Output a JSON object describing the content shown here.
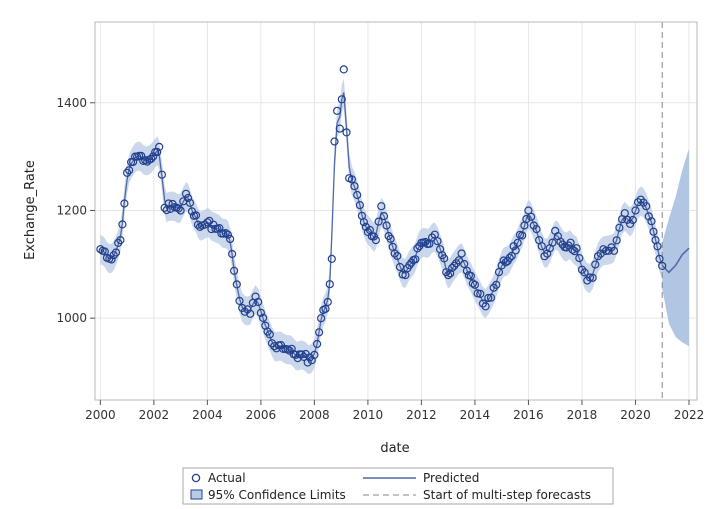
{
  "chart_data": {
    "type": "line",
    "xlabel": "date",
    "ylabel": "Exchange_Rate",
    "xlim": [
      1999.8,
      2022.3
    ],
    "ylim": [
      848,
      1550
    ],
    "x_ticks": [
      2000,
      2002,
      2004,
      2006,
      2008,
      2010,
      2012,
      2014,
      2016,
      2018,
      2020,
      2022
    ],
    "y_ticks": [
      1000,
      1200,
      1400
    ],
    "grid": true,
    "forecast_start": 2021.0,
    "series": [
      {
        "name": "Actual",
        "marker": "open-circle",
        "anchors": [
          [
            2000.0,
            1128
          ],
          [
            2000.25,
            1112
          ],
          [
            2000.5,
            1117
          ],
          [
            2000.75,
            1145
          ],
          [
            2000.9,
            1213
          ],
          [
            2001.0,
            1270
          ],
          [
            2001.3,
            1300
          ],
          [
            2001.6,
            1292
          ],
          [
            2001.9,
            1296
          ],
          [
            2002.2,
            1318
          ],
          [
            2002.4,
            1205
          ],
          [
            2002.7,
            1212
          ],
          [
            2003.0,
            1200
          ],
          [
            2003.2,
            1231
          ],
          [
            2003.5,
            1190
          ],
          [
            2003.8,
            1172
          ],
          [
            2004.0,
            1178
          ],
          [
            2004.3,
            1166
          ],
          [
            2004.6,
            1157
          ],
          [
            2004.85,
            1147
          ],
          [
            2005.0,
            1088
          ],
          [
            2005.2,
            1032
          ],
          [
            2005.4,
            1012
          ],
          [
            2005.6,
            1008
          ],
          [
            2005.8,
            1040
          ],
          [
            2006.0,
            1010
          ],
          [
            2006.25,
            975
          ],
          [
            2006.5,
            948
          ],
          [
            2006.75,
            950
          ],
          [
            2007.0,
            942
          ],
          [
            2007.3,
            932
          ],
          [
            2007.6,
            928
          ],
          [
            2007.9,
            922
          ],
          [
            2008.1,
            952
          ],
          [
            2008.25,
            1000
          ],
          [
            2008.5,
            1030
          ],
          [
            2008.65,
            1110
          ],
          [
            2008.75,
            1328
          ],
          [
            2008.85,
            1385
          ],
          [
            2008.95,
            1352
          ],
          [
            2009.1,
            1462
          ],
          [
            2009.2,
            1345
          ],
          [
            2009.3,
            1260
          ],
          [
            2009.5,
            1245
          ],
          [
            2009.7,
            1210
          ],
          [
            2010.0,
            1160
          ],
          [
            2010.3,
            1145
          ],
          [
            2010.5,
            1208
          ],
          [
            2010.7,
            1172
          ],
          [
            2011.0,
            1120
          ],
          [
            2011.2,
            1095
          ],
          [
            2011.4,
            1080
          ],
          [
            2011.7,
            1108
          ],
          [
            2012.0,
            1140
          ],
          [
            2012.3,
            1138
          ],
          [
            2012.5,
            1155
          ],
          [
            2012.7,
            1128
          ],
          [
            2013.0,
            1080
          ],
          [
            2013.3,
            1102
          ],
          [
            2013.5,
            1120
          ],
          [
            2013.7,
            1088
          ],
          [
            2014.0,
            1062
          ],
          [
            2014.2,
            1045
          ],
          [
            2014.4,
            1022
          ],
          [
            2014.6,
            1038
          ],
          [
            2014.8,
            1062
          ],
          [
            2015.0,
            1098
          ],
          [
            2015.3,
            1112
          ],
          [
            2015.6,
            1140
          ],
          [
            2015.85,
            1172
          ],
          [
            2016.0,
            1200
          ],
          [
            2016.2,
            1172
          ],
          [
            2016.4,
            1145
          ],
          [
            2016.6,
            1115
          ],
          [
            2016.8,
            1130
          ],
          [
            2017.0,
            1162
          ],
          [
            2017.2,
            1142
          ],
          [
            2017.5,
            1135
          ],
          [
            2017.8,
            1130
          ],
          [
            2018.0,
            1090
          ],
          [
            2018.2,
            1070
          ],
          [
            2018.4,
            1075
          ],
          [
            2018.6,
            1115
          ],
          [
            2018.8,
            1128
          ],
          [
            2019.0,
            1125
          ],
          [
            2019.2,
            1125
          ],
          [
            2019.4,
            1168
          ],
          [
            2019.6,
            1195
          ],
          [
            2019.8,
            1175
          ],
          [
            2020.0,
            1200
          ],
          [
            2020.2,
            1220
          ],
          [
            2020.4,
            1208
          ],
          [
            2020.6,
            1180
          ],
          [
            2020.75,
            1145
          ],
          [
            2020.9,
            1110
          ],
          [
            2021.0,
            1097
          ]
        ]
      },
      {
        "name": "Predicted",
        "forecast": [
          [
            2021.0,
            1098
          ],
          [
            2021.25,
            1085
          ],
          [
            2021.5,
            1098
          ],
          [
            2021.75,
            1118
          ],
          [
            2022.0,
            1130
          ]
        ]
      }
    ],
    "confidence_limits": {
      "name": "95% Confidence Limits",
      "forecast_upper": [
        [
          2021.0,
          1140
        ],
        [
          2021.25,
          1185
        ],
        [
          2021.5,
          1225
        ],
        [
          2021.75,
          1275
        ],
        [
          2022.0,
          1315
        ]
      ],
      "forecast_lower": [
        [
          2021.0,
          1055
        ],
        [
          2021.25,
          990
        ],
        [
          2021.5,
          965
        ],
        [
          2021.75,
          955
        ],
        [
          2022.0,
          948
        ]
      ]
    },
    "legend": {
      "placement": "bottom",
      "entries": [
        "Actual",
        "Predicted",
        "95% Confidence Limits",
        "Start of multi-step forecasts"
      ]
    },
    "colors": {
      "actual": "#23408e",
      "predicted": "#4f68a6",
      "band": "#b9cbe6",
      "forecast_band": "#a9c0e0",
      "reference_line": "#888888",
      "grid": "#e6e6e6",
      "frame": "#b8b8b8"
    }
  }
}
